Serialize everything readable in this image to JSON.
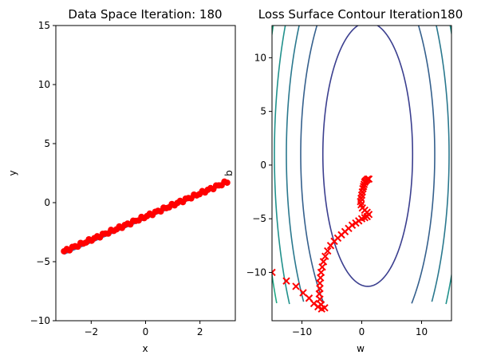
{
  "chart_data": [
    {
      "type": "scatter",
      "title": "Data Space Iteration: 180",
      "xlabel": "x",
      "ylabel": "y",
      "xlim": [
        -3.3,
        3.3
      ],
      "ylim": [
        -10,
        15
      ],
      "xticks": [
        -2,
        0,
        2
      ],
      "yticks": [
        -10,
        -5,
        0,
        5,
        10,
        15
      ],
      "series": [
        {
          "kind": "line",
          "color": "#4c72b0",
          "x": [
            -3,
            3
          ],
          "y": [
            -4.35,
            1.65
          ]
        },
        {
          "kind": "scatter",
          "color": "#ff0000",
          "x_start": -3,
          "x_end": 3,
          "count": 60,
          "slope": 0.98,
          "intercept": -1.18,
          "noise": 0.12
        }
      ]
    },
    {
      "type": "contour",
      "title": "Loss Surface Contour Iteration180",
      "xlabel": "w",
      "ylabel": "b",
      "xlim": [
        -15,
        15
      ],
      "ylim": [
        -14.5,
        13
      ],
      "xticks": [
        -10,
        0,
        10
      ],
      "yticks": [
        -10,
        -5,
        0,
        5,
        10
      ],
      "contour_center": [
        1,
        1
      ],
      "contour_levels": [
        {
          "a": 7.5,
          "b": 12.3,
          "color": "#3b3f8f"
        },
        {
          "a": 11.2,
          "b": 18.4,
          "color": "#35608d"
        },
        {
          "a": 13.6,
          "b": 22.3,
          "color": "#2a788e"
        },
        {
          "a": 15.6,
          "b": 25.6,
          "color": "#21918c"
        },
        {
          "a": 17.4,
          "b": 28.6,
          "color": "#22a884"
        },
        {
          "a": 19.1,
          "b": 31.4,
          "color": "#7ad151"
        }
      ],
      "trajectory_color": "#ff0000",
      "trajectory": [
        [
          -15,
          -10
        ],
        [
          -12.6,
          -10.8
        ],
        [
          -11.0,
          -11.3
        ],
        [
          -9.8,
          -11.9
        ],
        [
          -8.8,
          -12.4
        ],
        [
          -8.0,
          -12.9
        ],
        [
          -7.3,
          -13.2
        ],
        [
          -6.7,
          -13.4
        ],
        [
          -6.2,
          -13.3
        ],
        [
          -6.8,
          -13.0
        ],
        [
          -7.0,
          -12.5
        ],
        [
          -7.1,
          -12.0
        ],
        [
          -7.0,
          -11.5
        ],
        [
          -7.0,
          -11.0
        ],
        [
          -6.9,
          -10.5
        ],
        [
          -6.8,
          -10.0
        ],
        [
          -6.6,
          -9.5
        ],
        [
          -6.4,
          -9.0
        ],
        [
          -6.1,
          -8.5
        ],
        [
          -5.7,
          -8.0
        ],
        [
          -5.2,
          -7.5
        ],
        [
          -4.6,
          -7.1
        ],
        [
          -4.0,
          -6.8
        ],
        [
          -3.4,
          -6.5
        ],
        [
          -2.8,
          -6.2
        ],
        [
          -2.2,
          -5.9
        ],
        [
          -1.6,
          -5.6
        ],
        [
          -1.0,
          -5.4
        ],
        [
          -0.5,
          -5.2
        ],
        [
          0.0,
          -5.0
        ],
        [
          0.5,
          -4.9
        ],
        [
          0.9,
          -4.8
        ],
        [
          1.2,
          -4.6
        ],
        [
          0.9,
          -4.4
        ],
        [
          0.5,
          -4.2
        ],
        [
          0.1,
          -4.0
        ],
        [
          -0.1,
          -3.7
        ],
        [
          -0.2,
          -3.4
        ],
        [
          -0.1,
          -3.1
        ],
        [
          0.0,
          -2.8
        ],
        [
          0.1,
          -2.5
        ],
        [
          0.2,
          -2.2
        ],
        [
          0.3,
          -2.0
        ],
        [
          0.4,
          -1.8
        ],
        [
          0.5,
          -1.6
        ],
        [
          0.6,
          -1.5
        ],
        [
          0.8,
          -1.4
        ],
        [
          1.0,
          -1.3
        ],
        [
          1.2,
          -1.3
        ]
      ]
    }
  ]
}
